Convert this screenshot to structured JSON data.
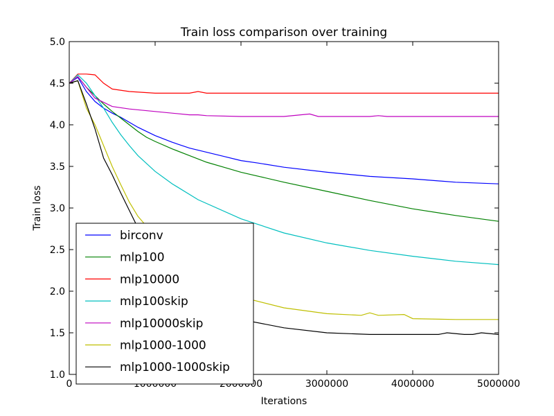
{
  "chart_data": {
    "type": "line",
    "title": "Train loss comparison over training",
    "xlabel": "Iterations",
    "ylabel": "Train loss",
    "xlim": [
      0,
      5000000
    ],
    "ylim": [
      1.0,
      5.0
    ],
    "xticks": [
      0,
      1000000,
      2000000,
      3000000,
      4000000,
      5000000
    ],
    "xtick_labels": [
      "0",
      "1000000",
      "2000000",
      "3000000",
      "4000000",
      "5000000"
    ],
    "yticks": [
      1.0,
      1.5,
      2.0,
      2.5,
      3.0,
      3.5,
      4.0,
      4.5,
      5.0
    ],
    "ytick_labels": [
      "1.0",
      "1.5",
      "2.0",
      "2.5",
      "3.0",
      "3.5",
      "4.0",
      "4.5",
      "5.0"
    ],
    "grid": false,
    "legend_position": "lower-left",
    "series": [
      {
        "name": "birconv",
        "color": "#0000ff",
        "x": [
          0,
          100000,
          200000,
          300000,
          400000,
          500000,
          600000,
          800000,
          1000000,
          1200000,
          1400000,
          1600000,
          1800000,
          2000000,
          2200000,
          2500000,
          3000000,
          3500000,
          4000000,
          4500000,
          5000000
        ],
        "y": [
          4.5,
          4.57,
          4.4,
          4.28,
          4.2,
          4.14,
          4.09,
          3.97,
          3.87,
          3.79,
          3.72,
          3.67,
          3.62,
          3.57,
          3.54,
          3.49,
          3.43,
          3.38,
          3.35,
          3.31,
          3.29
        ]
      },
      {
        "name": "mlp100",
        "color": "#008000",
        "x": [
          0,
          100000,
          200000,
          300000,
          400000,
          500000,
          600000,
          700000,
          800000,
          900000,
          1000000,
          1200000,
          1400000,
          1600000,
          1800000,
          2000000,
          2500000,
          3000000,
          3500000,
          4000000,
          4500000,
          5000000
        ],
        "y": [
          4.5,
          4.58,
          4.45,
          4.35,
          4.25,
          4.16,
          4.08,
          4.0,
          3.92,
          3.85,
          3.8,
          3.71,
          3.63,
          3.55,
          3.49,
          3.43,
          3.31,
          3.2,
          3.09,
          2.99,
          2.91,
          2.84
        ]
      },
      {
        "name": "mlp10000",
        "color": "#ff0000",
        "x": [
          0,
          100000,
          200000,
          300000,
          400000,
          500000,
          700000,
          1000000,
          1400000,
          1500000,
          1600000,
          2000000,
          3000000,
          4000000,
          5000000
        ],
        "y": [
          4.5,
          4.61,
          4.61,
          4.6,
          4.5,
          4.43,
          4.4,
          4.38,
          4.38,
          4.4,
          4.38,
          4.38,
          4.38,
          4.38,
          4.38
        ]
      },
      {
        "name": "mlp100skip",
        "color": "#00bfbf",
        "x": [
          0,
          100000,
          200000,
          300000,
          400000,
          500000,
          600000,
          700000,
          800000,
          1000000,
          1200000,
          1500000,
          2000000,
          2500000,
          3000000,
          3500000,
          4000000,
          4500000,
          5000000
        ],
        "y": [
          4.5,
          4.6,
          4.5,
          4.35,
          4.2,
          4.03,
          3.88,
          3.75,
          3.63,
          3.44,
          3.29,
          3.1,
          2.87,
          2.7,
          2.58,
          2.49,
          2.42,
          2.36,
          2.32
        ]
      },
      {
        "name": "mlp10000skip",
        "color": "#bf00bf",
        "x": [
          0,
          100000,
          200000,
          300000,
          400000,
          500000,
          700000,
          1000000,
          1400000,
          1500000,
          1600000,
          2000000,
          2500000,
          2800000,
          2900000,
          3500000,
          3600000,
          3700000,
          5000000
        ],
        "y": [
          4.5,
          4.58,
          4.45,
          4.32,
          4.27,
          4.22,
          4.19,
          4.16,
          4.12,
          4.12,
          4.11,
          4.1,
          4.1,
          4.13,
          4.1,
          4.1,
          4.11,
          4.1,
          4.1
        ]
      },
      {
        "name": "mlp1000-1000",
        "color": "#bfbf00",
        "x": [
          0,
          100000,
          200000,
          300000,
          400000,
          500000,
          600000,
          700000,
          800000,
          900000,
          1000000,
          1200000,
          1500000,
          2000000,
          2500000,
          3000000,
          3400000,
          3500000,
          3600000,
          3900000,
          4000000,
          4500000,
          5000000
        ],
        "y": [
          4.5,
          4.53,
          4.2,
          4.0,
          3.75,
          3.5,
          3.28,
          3.07,
          2.9,
          2.78,
          2.68,
          2.5,
          2.25,
          1.93,
          1.8,
          1.73,
          1.71,
          1.74,
          1.71,
          1.72,
          1.67,
          1.66,
          1.66
        ]
      },
      {
        "name": "mlp1000-1000skip",
        "color": "#000000",
        "x": [
          0,
          100000,
          200000,
          300000,
          400000,
          500000,
          600000,
          700000,
          800000,
          900000,
          1000000,
          1200000,
          1500000,
          2000000,
          2500000,
          3000000,
          3500000,
          4000000,
          4300000,
          4400000,
          4600000,
          4700000,
          4800000,
          5000000
        ],
        "y": [
          4.5,
          4.53,
          4.25,
          3.95,
          3.6,
          3.4,
          3.18,
          2.97,
          2.76,
          2.57,
          2.41,
          2.19,
          1.93,
          1.66,
          1.56,
          1.5,
          1.48,
          1.48,
          1.48,
          1.5,
          1.48,
          1.48,
          1.5,
          1.48
        ]
      }
    ]
  }
}
